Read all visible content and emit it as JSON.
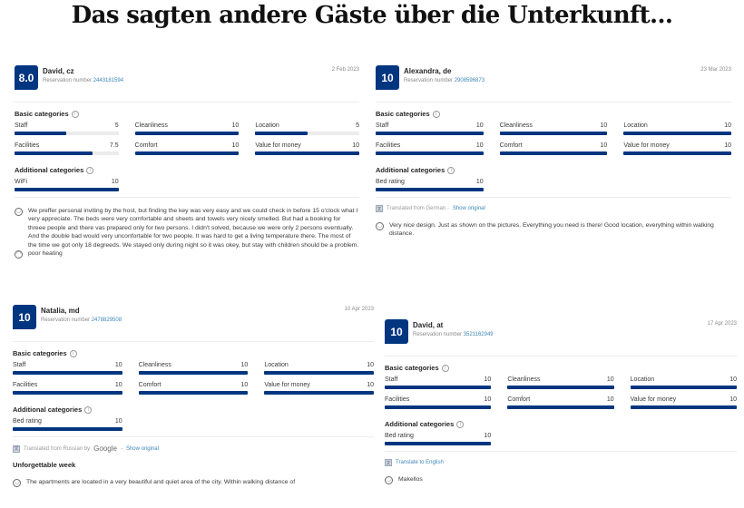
{
  "headline": "Das sagten andere Gäste über die Unterkunft...",
  "colors": {
    "score_bg": "#003580",
    "bar_fill": "#003580",
    "bar_track": "#ececec",
    "link": "#3d87b8"
  },
  "labels": {
    "reservation_prefix": "Reservation number",
    "basic_categories": "Basic categories",
    "additional_categories": "Additional categories",
    "show_original": "Show original"
  },
  "reviews": [
    {
      "score": "8.0",
      "name": "David, cz",
      "reservation_number": "2443181594",
      "date": "2 Feb 2023",
      "basic": [
        {
          "label": "Staff",
          "value": "5",
          "pct": 50
        },
        {
          "label": "Cleanliness",
          "value": "10",
          "pct": 100
        },
        {
          "label": "Location",
          "value": "5",
          "pct": 50
        },
        {
          "label": "Facilities",
          "value": "7.5",
          "pct": 75
        },
        {
          "label": "Comfort",
          "value": "10",
          "pct": 100
        },
        {
          "label": "Value for money",
          "value": "10",
          "pct": 100
        }
      ],
      "additional": [
        {
          "label": "WiFi",
          "value": "10",
          "pct": 100
        }
      ],
      "positive": "We preffer personal inviting by the host, but finding the key was very easy and we could check in before 15 o'clock what I very appreciate. The beds were very comfortable and sheets and towels very nicely smelled. But had a booking for threee people and there vas prepared only for two persons. I didn't solved, because we were only 2 persons eventually. And the double bad would very unconfortable for two people. It was hard to get a living temperature there. The most of the time we got only 18 degreeds. We stayed only during night so it was okey, but stay with children should be a problem.",
      "negative": "poor heating"
    },
    {
      "score": "10",
      "name": "Alexandra, de",
      "reservation_number": "2908596873",
      "date": "23 Mar 2023",
      "basic": [
        {
          "label": "Staff",
          "value": "10",
          "pct": 100
        },
        {
          "label": "Cleanliness",
          "value": "10",
          "pct": 100
        },
        {
          "label": "Location",
          "value": "10",
          "pct": 100
        },
        {
          "label": "Facilities",
          "value": "10",
          "pct": 100
        },
        {
          "label": "Comfort",
          "value": "10",
          "pct": 100
        },
        {
          "label": "Value for money",
          "value": "10",
          "pct": 100
        }
      ],
      "additional": [
        {
          "label": "Bed rating",
          "value": "10",
          "pct": 100
        }
      ],
      "translated_from": "Translated from German -",
      "positive": "Very nice design. Just as shown on the pictures. Everything you need is there! Good location, everything within walking distance."
    },
    {
      "score": "10",
      "name": "Natalia, md",
      "reservation_number": "2478829508",
      "date": "10 Apr 2023",
      "basic": [
        {
          "label": "Staff",
          "value": "10",
          "pct": 100
        },
        {
          "label": "Cleanliness",
          "value": "10",
          "pct": 100
        },
        {
          "label": "Location",
          "value": "10",
          "pct": 100
        },
        {
          "label": "Facilities",
          "value": "10",
          "pct": 100
        },
        {
          "label": "Comfort",
          "value": "10",
          "pct": 100
        },
        {
          "label": "Value for money",
          "value": "10",
          "pct": 100
        }
      ],
      "additional": [
        {
          "label": "Bed rating",
          "value": "10",
          "pct": 100
        }
      ],
      "translated_from": "Translated from Russian by",
      "translated_by": "Google",
      "title": "Unforgettable week",
      "positive": "The apartments are located in a very beautiful and quiet area of the city. Within walking distance of"
    },
    {
      "score": "10",
      "name": "David, at",
      "reservation_number": "3521162949",
      "date": "17 Apr 2023",
      "basic": [
        {
          "label": "Staff",
          "value": "10",
          "pct": 100
        },
        {
          "label": "Cleanliness",
          "value": "10",
          "pct": 100
        },
        {
          "label": "Location",
          "value": "10",
          "pct": 100
        },
        {
          "label": "Facilities",
          "value": "10",
          "pct": 100
        },
        {
          "label": "Comfort",
          "value": "10",
          "pct": 100
        },
        {
          "label": "Value for money",
          "value": "10",
          "pct": 100
        }
      ],
      "additional": [
        {
          "label": "Bed rating",
          "value": "10",
          "pct": 100
        }
      ],
      "translate_to": "Translate to English",
      "positive": "Makellos"
    }
  ]
}
